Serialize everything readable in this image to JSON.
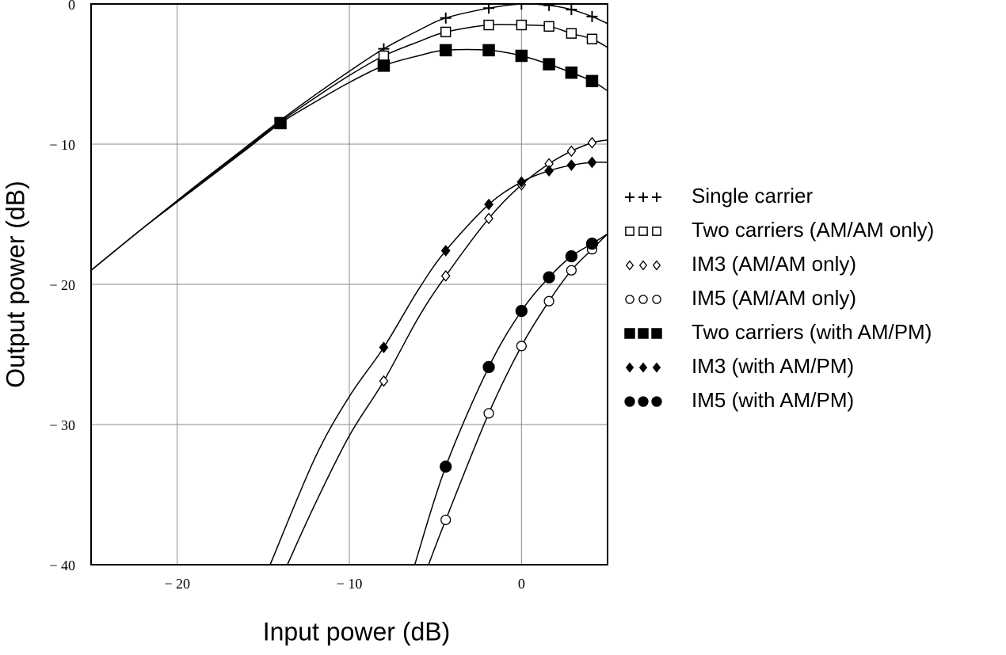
{
  "chart_data": {
    "type": "line",
    "xlabel": "Input power (dB)",
    "ylabel": "Output power (dB)",
    "xlim": [
      -25,
      5
    ],
    "ylim": [
      -40,
      0
    ],
    "xticks": [
      {
        "value": -20,
        "label": "− 20"
      },
      {
        "value": -10,
        "label": "− 10"
      },
      0
    ],
    "yticks": [
      0,
      {
        "value": -10,
        "label": "− 10"
      },
      {
        "value": -20,
        "label": "− 20"
      },
      {
        "value": -30,
        "label": "− 30"
      },
      {
        "value": -40,
        "label": "− 40"
      }
    ],
    "grid": true,
    "legend": "right",
    "series": [
      {
        "name": "Single carrier",
        "color": "#000000",
        "marker": "plus",
        "x": [
          -25,
          -22,
          -19,
          -16,
          -14,
          -12,
          -10,
          -8,
          -6,
          -4.4,
          -1.9,
          0,
          1.6,
          2.9,
          4.1,
          5
        ],
        "values": [
          -19,
          -16,
          -13.05,
          -10.2,
          -8.3,
          -6.5,
          -4.8,
          -3.2,
          -1.9,
          -1.0,
          -0.3,
          0,
          -0.1,
          -0.4,
          -0.9,
          -1.4
        ],
        "markers": {
          "x": [
            -8,
            -4.4,
            -1.9,
            0,
            1.6,
            2.9,
            4.1
          ],
          "values": [
            -3.2,
            -1.0,
            -0.3,
            0,
            -0.1,
            -0.4,
            -0.9
          ]
        }
      },
      {
        "name": "Two carriers (AM/AM only)",
        "color": "#000000",
        "marker": "square-open",
        "x": [
          -25,
          -22,
          -19,
          -16,
          -14,
          -12,
          -10,
          -8,
          -6,
          -4.4,
          -1.9,
          0,
          1.6,
          2.9,
          4.1,
          5
        ],
        "values": [
          -19,
          -16,
          -13.1,
          -10.3,
          -8.4,
          -6.7,
          -5.1,
          -3.7,
          -2.7,
          -2.0,
          -1.5,
          -1.5,
          -1.6,
          -2.1,
          -2.5,
          -3.1
        ],
        "markers": {
          "x": [
            -8,
            -4.4,
            -1.9,
            0,
            1.6,
            2.9,
            4.1
          ],
          "values": [
            -3.7,
            -2.0,
            -1.5,
            -1.5,
            -1.6,
            -2.1,
            -2.5
          ]
        }
      },
      {
        "name": "IM3 (AM/AM only)",
        "color": "#000000",
        "marker": "diamond-open",
        "x": [
          -13.6,
          -12,
          -10,
          -8,
          -6,
          -4.4,
          -1.9,
          0,
          1.6,
          2.9,
          4.1,
          5
        ],
        "values": [
          -40,
          -35.7,
          -30.8,
          -26.9,
          -22.4,
          -19.4,
          -15.3,
          -12.9,
          -11.4,
          -10.5,
          -9.9,
          -9.7
        ],
        "markers": {
          "x": [
            -8,
            -4.4,
            -1.9,
            0,
            1.6,
            2.9,
            4.1
          ],
          "values": [
            -26.9,
            -19.4,
            -15.3,
            -12.9,
            -11.4,
            -10.5,
            -9.9
          ]
        }
      },
      {
        "name": "IM5 (AM/AM only)",
        "color": "#000000",
        "marker": "circle-open",
        "x": [
          -5.4,
          -4.4,
          -1.9,
          0,
          1.6,
          2.9,
          4.1,
          5
        ],
        "values": [
          -40,
          -36.8,
          -29.2,
          -24.4,
          -21.2,
          -19.0,
          -17.5,
          -16.4
        ],
        "markers": {
          "x": [
            -4.4,
            -1.9,
            0,
            1.6,
            2.9,
            4.1
          ],
          "values": [
            -36.8,
            -29.2,
            -24.4,
            -21.2,
            -19.0,
            -17.5
          ]
        }
      },
      {
        "name": "Two carriers (with AM/PM)",
        "color": "#000000",
        "marker": "square",
        "x": [
          -25,
          -22,
          -19,
          -16,
          -14,
          -12,
          -10,
          -8,
          -6,
          -4.4,
          -1.9,
          0,
          1.6,
          2.9,
          4.1,
          5
        ],
        "values": [
          -19,
          -16,
          -13.2,
          -10.4,
          -8.5,
          -7.0,
          -5.6,
          -4.4,
          -3.7,
          -3.3,
          -3.3,
          -3.7,
          -4.3,
          -4.9,
          -5.5,
          -6.2
        ],
        "markers": {
          "x": [
            -14,
            -8,
            -4.4,
            -1.9,
            0,
            1.6,
            2.9,
            4.1
          ],
          "values": [
            -8.5,
            -4.4,
            -3.3,
            -3.3,
            -3.7,
            -4.3,
            -4.9,
            -5.5
          ]
        }
      },
      {
        "name": "IM3 (with AM/PM)",
        "color": "#000000",
        "marker": "diamond",
        "x": [
          -14.6,
          -12,
          -10,
          -8,
          -6,
          -4.4,
          -1.9,
          0,
          1.6,
          2.9,
          4.1,
          5
        ],
        "values": [
          -40,
          -32.4,
          -28.0,
          -24.5,
          -20.4,
          -17.6,
          -14.3,
          -12.7,
          -11.9,
          -11.5,
          -11.3,
          -11.3
        ],
        "markers": {
          "x": [
            -8,
            -4.4,
            -1.9,
            0,
            1.6,
            2.9,
            4.1
          ],
          "values": [
            -24.5,
            -17.6,
            -14.3,
            -12.7,
            -11.9,
            -11.5,
            -11.3
          ]
        }
      },
      {
        "name": "IM5 (with AM/PM)",
        "color": "#000000",
        "marker": "circle",
        "x": [
          -6.2,
          -4.4,
          -1.9,
          0,
          1.6,
          2.9,
          4.1,
          5
        ],
        "values": [
          -40,
          -33.0,
          -25.9,
          -21.9,
          -19.5,
          -18.0,
          -17.1,
          -16.4
        ],
        "markers": {
          "x": [
            -4.4,
            -1.9,
            0,
            1.6,
            2.9,
            4.1
          ],
          "values": [
            -33.0,
            -25.9,
            -21.9,
            -19.5,
            -18.0,
            -17.1
          ]
        }
      }
    ]
  }
}
